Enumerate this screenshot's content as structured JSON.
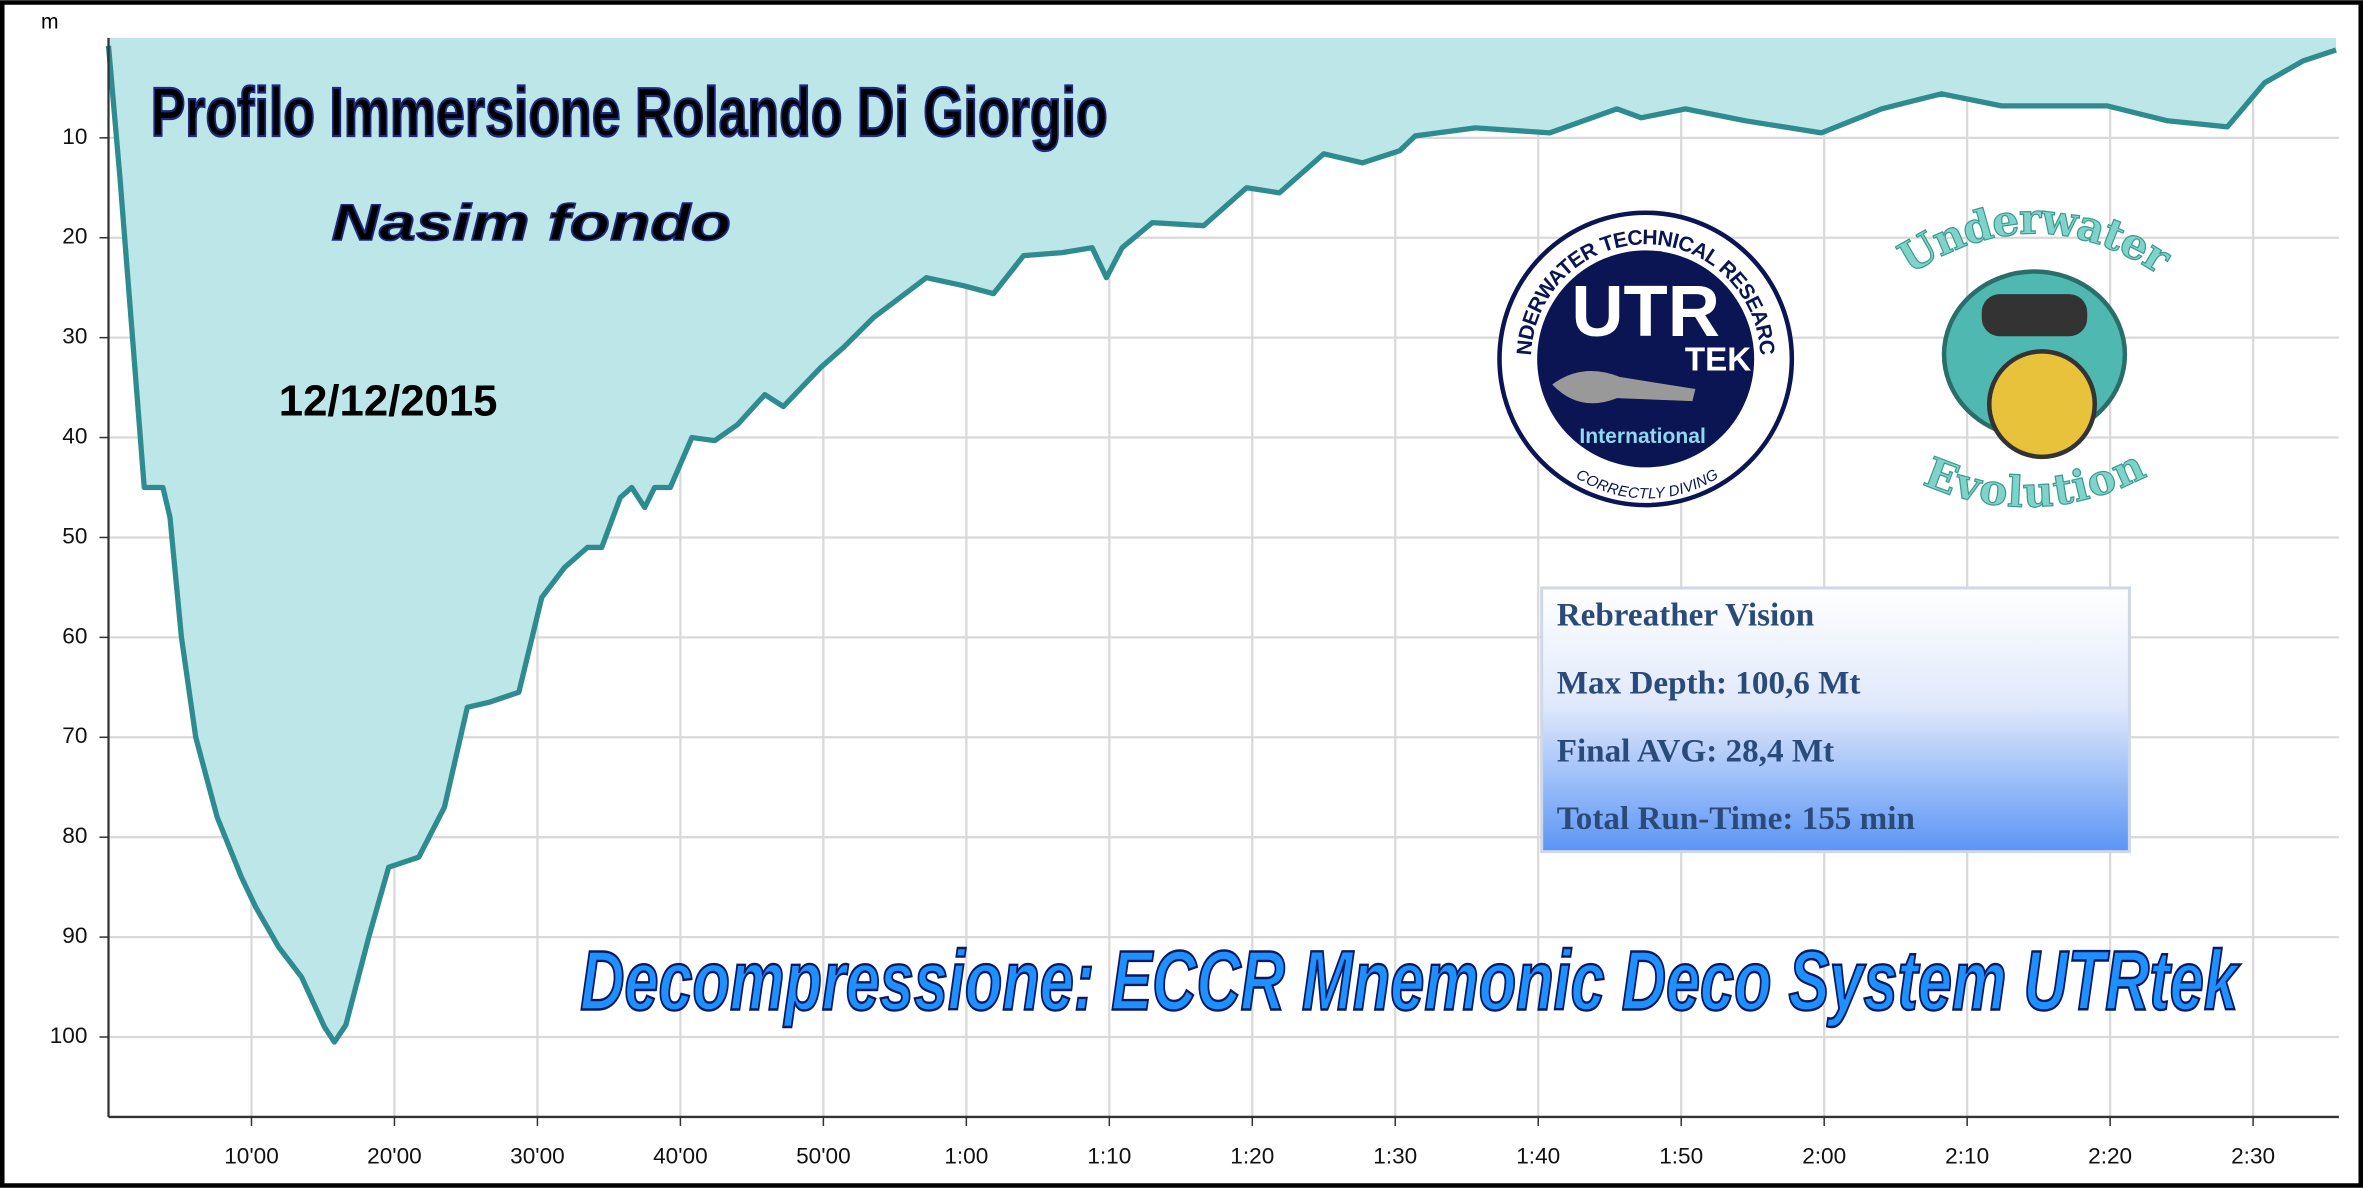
{
  "chart_data": {
    "type": "area",
    "title": "Profilo Immersione Rolando Di Giorgio",
    "subtitle": "Nasim fondo",
    "date": "12/12/2015",
    "annotation": "Decompressione: ECCR Mnemonic Deco System UTRtek",
    "y_label": "m",
    "info_box": [
      "Rebreather Vision",
      "Max Depth: 100,6 Mt",
      "Final AVG: 28,4 Mt",
      "Total Run-Time: 155 min"
    ],
    "logo_1": {
      "ring_top": "UNDERWATER TECHNICAL RESEARCH",
      "ring_bottom": "CORRECTLY DIVING",
      "main": "UTR",
      "sub": "TEK",
      "label": "International"
    },
    "logo_2": {
      "top": "Underwater",
      "bottom": "Evolution"
    },
    "x": [
      0,
      0.8,
      1.9,
      2.5,
      3.8,
      4.3,
      5.1,
      6.1,
      7.6,
      9.3,
      10.3,
      11.9,
      13.5,
      15.1,
      15.8,
      16.6,
      18.2,
      19.6,
      21.7,
      23.5,
      25.1,
      26.6,
      28.7,
      30.3,
      31.9,
      33.5,
      34.5,
      35.8,
      36.6,
      37.5,
      38.2,
      39.3,
      40.8,
      42.4,
      44,
      45.9,
      47.2,
      49.8,
      51.4,
      53.5,
      57.2,
      59.8,
      61.9,
      64,
      66.7,
      68.8,
      69.8,
      70.9,
      73,
      76.6,
      79.6,
      81.9,
      85,
      87.7,
      90.3,
      91.4,
      95.6,
      100.8,
      105.5,
      107.2,
      110.3,
      114.5,
      119.8,
      124,
      128.2,
      132.4,
      139.8,
      144,
      148.2,
      150.8,
      153.5,
      155.8
    ],
    "values": [
      0.8,
      14,
      34,
      45,
      45,
      48,
      60,
      70,
      78,
      84,
      87,
      91,
      94,
      99,
      100.5,
      98.8,
      90,
      83,
      82,
      77,
      67,
      66.5,
      65.5,
      56,
      53,
      51,
      51,
      46,
      45,
      47,
      45,
      45,
      40,
      40.3,
      38.7,
      35.7,
      36.9,
      33,
      31,
      28,
      24,
      24.8,
      25.6,
      21.8,
      21.5,
      21,
      24,
      21,
      18.5,
      18.8,
      15,
      15.5,
      11.6,
      12.5,
      11.3,
      9.8,
      9,
      9.5,
      7.1,
      8,
      7.1,
      8.3,
      9.5,
      7.1,
      5.6,
      6.8,
      6.8,
      8.3,
      8.9,
      4.5,
      2.3,
      1.2
    ],
    "color": "#2e8b8f",
    "fill_color": "#bde6e9",
    "xlim": [
      0,
      156
    ],
    "ylim": [
      0,
      108
    ],
    "y_inverted": true,
    "grid": true,
    "xticks": [
      {
        "value": 10,
        "label": "10'00"
      },
      {
        "value": 20,
        "label": "20'00"
      },
      {
        "value": 30,
        "label": "30'00"
      },
      {
        "value": 40,
        "label": "40'00"
      },
      {
        "value": 50,
        "label": "50'00"
      },
      {
        "value": 60,
        "label": "1:00"
      },
      {
        "value": 70,
        "label": "1:10"
      },
      {
        "value": 80,
        "label": "1:20"
      },
      {
        "value": 90,
        "label": "1:30"
      },
      {
        "value": 100,
        "label": "1:40"
      },
      {
        "value": 110,
        "label": "1:50"
      },
      {
        "value": 120,
        "label": "2:00"
      },
      {
        "value": 130,
        "label": "2:10"
      },
      {
        "value": 140,
        "label": "2:20"
      },
      {
        "value": 150,
        "label": "2:30"
      }
    ],
    "yticks": [
      10,
      20,
      30,
      40,
      50,
      60,
      70,
      80,
      90,
      100
    ]
  }
}
